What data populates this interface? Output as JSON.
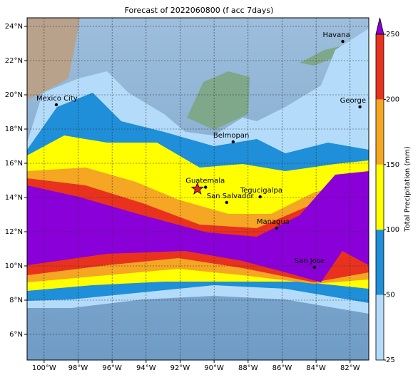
{
  "chart_data": {
    "type": "map",
    "title": "Forecast of 2022060800 (f acc 7days)",
    "xlim": [
      -101,
      -80.9
    ],
    "ylim": [
      4.5,
      24.5
    ],
    "xticks": [
      {
        "value": -100,
        "label": "100°W"
      },
      {
        "value": -98,
        "label": "98°W"
      },
      {
        "value": -96,
        "label": "96°W"
      },
      {
        "value": -94,
        "label": "94°W"
      },
      {
        "value": -92,
        "label": "92°W"
      },
      {
        "value": -90,
        "label": "90°W"
      },
      {
        "value": -88,
        "label": "88°W"
      },
      {
        "value": -86,
        "label": "86°W"
      },
      {
        "value": -84,
        "label": "84°W"
      },
      {
        "value": -82,
        "label": "82°W"
      }
    ],
    "yticks": [
      {
        "value": 6,
        "label": "6°N"
      },
      {
        "value": 8,
        "label": "8°N"
      },
      {
        "value": 10,
        "label": "10°N"
      },
      {
        "value": 12,
        "label": "12°N"
      },
      {
        "value": 14,
        "label": "14°N"
      },
      {
        "value": 16,
        "label": "16°N"
      },
      {
        "value": 18,
        "label": "18°N"
      },
      {
        "value": 20,
        "label": "20°N"
      },
      {
        "value": 22,
        "label": "22°N"
      },
      {
        "value": 24,
        "label": "24°N"
      }
    ],
    "grid": true,
    "cities": [
      {
        "name": "Mexico City",
        "lon": -99.28,
        "lat": 19.42
      },
      {
        "name": "Havana",
        "lon": -82.43,
        "lat": 23.12
      },
      {
        "name": "George Town",
        "lon": -81.42,
        "lat": 19.3
      },
      {
        "name": "Belmopan",
        "lon": -88.88,
        "lat": 17.25
      },
      {
        "name": "Guatemala",
        "lon": -90.5,
        "lat": 14.6
      },
      {
        "name": "San Salvador",
        "lon": -89.26,
        "lat": 13.71
      },
      {
        "name": "Tegucigalpa",
        "lon": -87.29,
        "lat": 14.04
      },
      {
        "name": "Managua",
        "lon": -86.32,
        "lat": 12.21
      },
      {
        "name": "San Jose",
        "lon": -84.1,
        "lat": 9.92
      }
    ],
    "star": {
      "lon": -90.98,
      "lat": 14.5,
      "color": "#e8201a"
    },
    "colorbar": {
      "label": "Total Precipitation (mm)",
      "levels": [
        25,
        50,
        100,
        150,
        200,
        250
      ],
      "colors": [
        "#b4dcfa",
        "#1e8fd8",
        "#ffff00",
        "#f5a623",
        "#e8321e"
      ],
      "extend_color": "#8a00d8"
    }
  }
}
